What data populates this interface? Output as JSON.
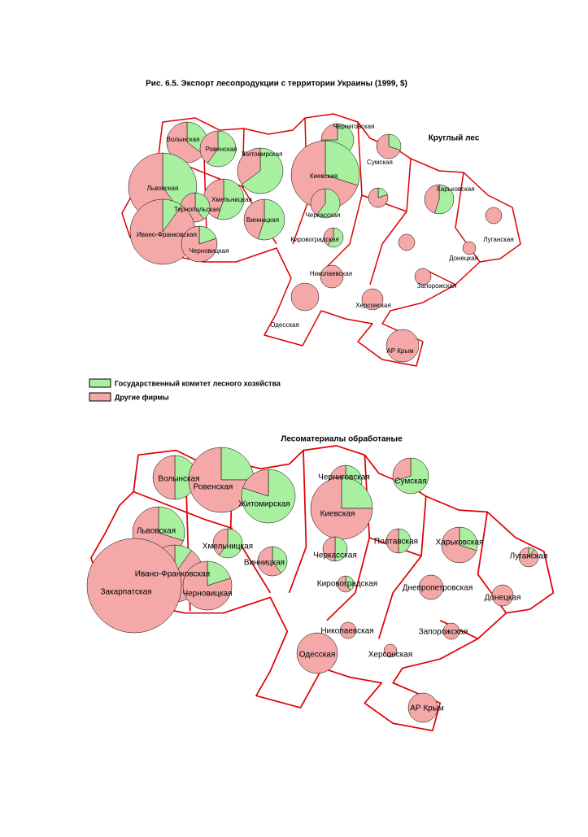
{
  "title": "Рис. 6.5. Экспорт лесопродукции с территории Украины (1999, $)",
  "legend": [
    {
      "label": "Государственный комитет лесного хозяйства",
      "color": "#a8f0a0"
    },
    {
      "label": "Другие фирмы",
      "color": "#f4a8a8"
    }
  ],
  "maps": [
    {
      "heading": "Круглый лес",
      "regions": [
        {
          "label": "Волынская",
          "share": 35
        },
        {
          "label": "Ровенская",
          "share": 60
        },
        {
          "label": "Житомирская",
          "share": 65
        },
        {
          "label": "Черниговская",
          "share": 75
        },
        {
          "label": "Сумская",
          "share": 30
        },
        {
          "label": "Киевская",
          "share": 30
        },
        {
          "label": "Львовская",
          "share": 40
        },
        {
          "label": "Хмельницкая",
          "share": 55
        },
        {
          "label": "Тернопольская",
          "share": 40
        },
        {
          "label": "Винницкая",
          "share": 55
        },
        {
          "label": "Черкасская",
          "share": 60
        },
        {
          "label": null,
          "share": 20
        },
        {
          "label": "Харьковская",
          "share": 55
        },
        {
          "label": "Ивано-Франковская",
          "share": 10
        },
        {
          "label": "Черновицкая",
          "share": 20
        },
        {
          "label": "Кировоградская",
          "share": 60
        },
        {
          "label": "Луганская",
          "share": 0
        },
        {
          "label": null,
          "share": 0
        },
        {
          "label": "Донецкая",
          "share": 0
        },
        {
          "label": "Запорожская",
          "share": 0
        },
        {
          "label": "Николаевская",
          "share": 0
        },
        {
          "label": "Одесская",
          "share": 0
        },
        {
          "label": "Херсонская",
          "share": 0
        },
        {
          "label": "АР Крым",
          "share": 0
        }
      ]
    },
    {
      "heading": "Лесоматериалы обработаные",
      "regions": [
        {
          "label": "Волынская",
          "share": 50
        },
        {
          "label": "Ровенская",
          "share": 25
        },
        {
          "label": "Житомирская",
          "share": 80
        },
        {
          "label": "Черниговская",
          "share": 50
        },
        {
          "label": "Сумская",
          "share": 70
        },
        {
          "label": "Киевская",
          "share": 25
        },
        {
          "label": "Львовская",
          "share": 30
        },
        {
          "label": "Хмельницкая",
          "share": 60
        },
        {
          "label": "Полтавская",
          "share": 50
        },
        {
          "label": "Харьковская",
          "share": 30
        },
        {
          "label": "Луганская",
          "share": 10
        },
        {
          "label": "Черкасская",
          "share": 50
        },
        {
          "label": "Винницкая",
          "share": 40
        },
        {
          "label": "Ивано-Франковская",
          "share": 10
        },
        {
          "label": "Закарпатская",
          "share": 0
        },
        {
          "label": "Черновицкая",
          "share": 20
        },
        {
          "label": "Кировоградская",
          "share": 40
        },
        {
          "label": "Днепропетровская",
          "share": 0
        },
        {
          "label": "Донецкая",
          "share": 0
        },
        {
          "label": "Николаевская",
          "share": 0
        },
        {
          "label": "Запорожская",
          "share": 0
        },
        {
          "label": "Одесская",
          "share": 0
        },
        {
          "label": "Херсонская",
          "share": 0
        },
        {
          "label": "АР Крым",
          "share": 0
        }
      ]
    }
  ]
}
